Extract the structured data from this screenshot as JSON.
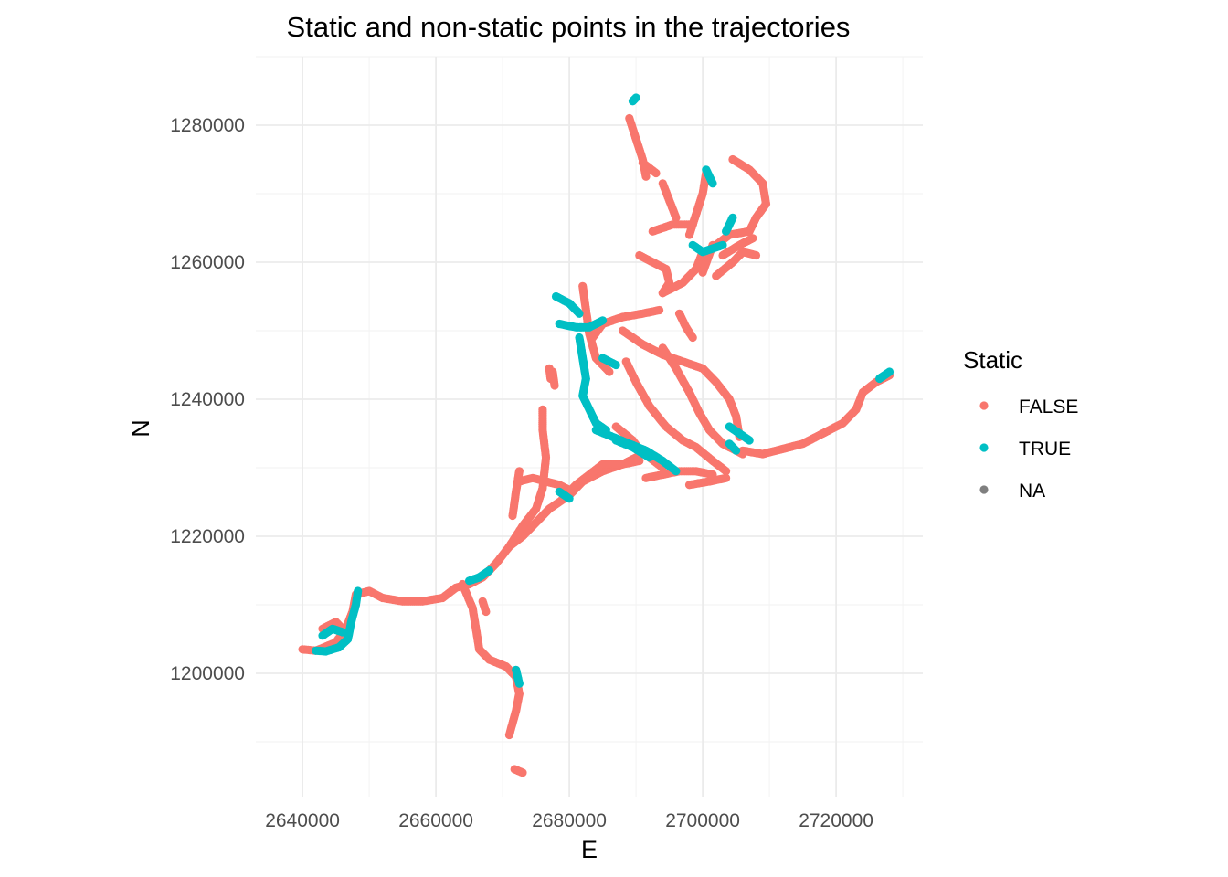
{
  "chart_data": {
    "type": "scatter",
    "title": "Static and non-static points in the trajectories",
    "xlabel": "E",
    "ylabel": "N",
    "xlim": [
      2633000,
      2733000
    ],
    "ylim": [
      1182000,
      1290000
    ],
    "x_ticks": [
      2640000,
      2660000,
      2680000,
      2700000,
      2720000
    ],
    "y_ticks": [
      1200000,
      1220000,
      1240000,
      1260000,
      1280000
    ],
    "x_tick_labels": [
      "2640000",
      "2660000",
      "2680000",
      "2700000",
      "2720000"
    ],
    "y_tick_labels": [
      "1200000",
      "1220000",
      "1240000",
      "1260000",
      "1280000"
    ],
    "grid": true,
    "legend": {
      "title": "Static",
      "position": "right",
      "entries": [
        {
          "label": "FALSE",
          "color": "#F8766D"
        },
        {
          "label": "TRUE",
          "color": "#00BFC4"
        },
        {
          "label": "NA",
          "color": "#7F7F7F"
        }
      ]
    },
    "series": [
      {
        "name": "FALSE",
        "color": "#F8766D",
        "paths": [
          [
            [
              2640000,
              1203500
            ],
            [
              2642000,
              1203300
            ],
            [
              2645000,
              1204500
            ],
            [
              2646500,
              1206500
            ],
            [
              2647500,
              1209000
            ],
            [
              2648000,
              1211500
            ],
            [
              2650000,
              1212000
            ],
            [
              2652000,
              1211000
            ],
            [
              2655000,
              1210500
            ],
            [
              2658000,
              1210500
            ],
            [
              2661000,
              1211000
            ],
            [
              2663000,
              1212500
            ],
            [
              2665000,
              1213000
            ],
            [
              2667000,
              1214000
            ],
            [
              2669000,
              1216000
            ],
            [
              2671000,
              1218500
            ],
            [
              2673000,
              1220000
            ],
            [
              2675000,
              1222000
            ],
            [
              2677000,
              1224000
            ],
            [
              2680000,
              1226000
            ],
            [
              2682000,
              1228000
            ],
            [
              2685000,
              1229500
            ],
            [
              2688000,
              1230500
            ],
            [
              2690000,
              1231500
            ]
          ],
          [
            [
              2643000,
              1206500
            ],
            [
              2645000,
              1207500
            ],
            [
              2646000,
              1206500
            ]
          ],
          [
            [
              2664000,
              1213000
            ],
            [
              2665500,
              1209500
            ],
            [
              2666000,
              1206500
            ],
            [
              2666500,
              1203500
            ],
            [
              2668000,
              1202000
            ],
            [
              2670500,
              1201000
            ],
            [
              2672000,
              1199500
            ],
            [
              2672500,
              1197000
            ],
            [
              2672000,
              1194500
            ],
            [
              2671000,
              1191000
            ]
          ],
          [
            [
              2667000,
              1210500
            ],
            [
              2667500,
              1209000
            ]
          ],
          [
            [
              2671800,
              1186000
            ],
            [
              2673000,
              1185500
            ]
          ],
          [
            [
              2671000,
              1218500
            ],
            [
              2673000,
              1221500
            ],
            [
              2675000,
              1224000
            ],
            [
              2676000,
              1227000
            ],
            [
              2676500,
              1231500
            ],
            [
              2676000,
              1235500
            ],
            [
              2676000,
              1238500
            ]
          ],
          [
            [
              2671500,
              1223000
            ],
            [
              2672000,
              1226500
            ],
            [
              2672500,
              1229500
            ]
          ],
          [
            [
              2672500,
              1228000
            ],
            [
              2674500,
              1228500
            ],
            [
              2676500,
              1228000
            ],
            [
              2678500,
              1227500
            ],
            [
              2680500,
              1226500
            ]
          ],
          [
            [
              2677000,
              1244500
            ],
            [
              2677200,
              1243000
            ]
          ],
          [
            [
              2679000,
              1225500
            ],
            [
              2681000,
              1227500
            ],
            [
              2683000,
              1229000
            ],
            [
              2685000,
              1230500
            ],
            [
              2688000,
              1230500
            ],
            [
              2690500,
              1231000
            ]
          ],
          [
            [
              2682000,
              1256500
            ],
            [
              2682500,
              1253000
            ],
            [
              2683000,
              1249500
            ],
            [
              2684000,
              1246000
            ],
            [
              2686000,
              1244000
            ]
          ],
          [
            [
              2683500,
              1249000
            ],
            [
              2685000,
              1251000
            ],
            [
              2688000,
              1252000
            ],
            [
              2691000,
              1252500
            ],
            [
              2693500,
              1253000
            ]
          ],
          [
            [
              2690000,
              1233000
            ],
            [
              2692000,
              1231500
            ],
            [
              2694000,
              1230000
            ]
          ],
          [
            [
              2698000,
              1227500
            ],
            [
              2701000,
              1228000
            ],
            [
              2703500,
              1228500
            ]
          ],
          [
            [
              2706000,
              1232500
            ],
            [
              2709000,
              1232000
            ],
            [
              2711000,
              1232500
            ],
            [
              2713000,
              1233000
            ],
            [
              2715000,
              1233500
            ],
            [
              2718000,
              1235000
            ],
            [
              2721000,
              1236500
            ],
            [
              2723000,
              1238500
            ],
            [
              2724000,
              1241000
            ],
            [
              2726000,
              1242500
            ],
            [
              2728000,
              1243500
            ]
          ],
          [
            [
              2689000,
              1281000
            ],
            [
              2690000,
              1278000
            ],
            [
              2691000,
              1275000
            ],
            [
              2691500,
              1272500
            ]
          ],
          [
            [
              2691000,
              1274500
            ],
            [
              2693000,
              1273000
            ]
          ],
          [
            [
              2690500,
              1261000
            ],
            [
              2692500,
              1260000
            ],
            [
              2694500,
              1259000
            ],
            [
              2695000,
              1257000
            ],
            [
              2694000,
              1255500
            ]
          ],
          [
            [
              2694000,
              1255500
            ],
            [
              2697000,
              1257000
            ],
            [
              2699000,
              1259000
            ],
            [
              2700000,
              1261500
            ]
          ],
          [
            [
              2702000,
              1262500
            ],
            [
              2704000,
              1264000
            ],
            [
              2707000,
              1264500
            ],
            [
              2708000,
              1266500
            ],
            [
              2709500,
              1268500
            ],
            [
              2709000,
              1271500
            ],
            [
              2707000,
              1273500
            ],
            [
              2704500,
              1275000
            ]
          ],
          [
            [
              2703000,
              1261000
            ],
            [
              2705500,
              1262500
            ],
            [
              2707500,
              1263500
            ]
          ],
          [
            [
              2702000,
              1258000
            ],
            [
              2704500,
              1260000
            ],
            [
              2706000,
              1261500
            ],
            [
              2708000,
              1261000
            ]
          ],
          [
            [
              2698000,
              1264000
            ],
            [
              2699000,
              1267000
            ],
            [
              2700000,
              1270000
            ],
            [
              2700500,
              1273000
            ]
          ],
          [
            [
              2696000,
              1266500
            ],
            [
              2695000,
              1269000
            ],
            [
              2694000,
              1271500
            ]
          ],
          [
            [
              2688000,
              1250000
            ],
            [
              2691000,
              1248000
            ],
            [
              2694000,
              1246500
            ],
            [
              2697000,
              1245500
            ],
            [
              2700000,
              1244500
            ],
            [
              2702000,
              1242500
            ],
            [
              2704000,
              1240000
            ],
            [
              2705000,
              1237500
            ],
            [
              2705500,
              1234500
            ]
          ],
          [
            [
              2688500,
              1245500
            ],
            [
              2690000,
              1242500
            ],
            [
              2692000,
              1239000
            ],
            [
              2694500,
              1236000
            ],
            [
              2697000,
              1234000
            ],
            [
              2699000,
              1233000
            ],
            [
              2701500,
              1231000
            ],
            [
              2703500,
              1229500
            ]
          ],
          [
            [
              2694000,
              1247500
            ],
            [
              2696000,
              1244500
            ],
            [
              2698000,
              1241000
            ],
            [
              2699500,
              1238000
            ],
            [
              2701000,
              1235500
            ],
            [
              2703000,
              1233500
            ],
            [
              2706000,
              1232000
            ]
          ],
          [
            [
              2691500,
              1228500
            ],
            [
              2694000,
              1229000
            ],
            [
              2696500,
              1229500
            ],
            [
              2699000,
              1229500
            ],
            [
              2701500,
              1229000
            ]
          ],
          [
            [
              2687000,
              1236000
            ],
            [
              2689500,
              1234000
            ],
            [
              2691000,
              1232000
            ]
          ],
          [
            [
              2700000,
              1258500
            ],
            [
              2701500,
              1262500
            ]
          ],
          [
            [
              2677500,
              1244000
            ],
            [
              2677800,
              1242000
            ]
          ],
          [
            [
              2692500,
              1264500
            ],
            [
              2695500,
              1265500
            ],
            [
              2698500,
              1265500
            ]
          ],
          [
            [
              2696500,
              1252500
            ],
            [
              2697500,
              1250500
            ],
            [
              2698500,
              1249000
            ]
          ]
        ]
      },
      {
        "name": "TRUE",
        "color": "#00BFC4",
        "paths": [
          [
            [
              2642000,
              1203300
            ],
            [
              2643500,
              1203200
            ],
            [
              2645500,
              1203800
            ],
            [
              2646800,
              1205000
            ],
            [
              2647300,
              1207500
            ],
            [
              2648000,
              1210000
            ],
            [
              2648300,
              1212000
            ]
          ],
          [
            [
              2643000,
              1205500
            ],
            [
              2644500,
              1206500
            ],
            [
              2646000,
              1206000
            ]
          ],
          [
            [
              2665000,
              1213500
            ],
            [
              2666500,
              1214000
            ],
            [
              2668000,
              1215000
            ]
          ],
          [
            [
              2678500,
              1226500
            ],
            [
              2680000,
              1225500
            ]
          ],
          [
            [
              2672000,
              1200500
            ],
            [
              2672500,
              1198500
            ]
          ],
          [
            [
              2678000,
              1255000
            ],
            [
              2680000,
              1254000
            ],
            [
              2681500,
              1252500
            ]
          ],
          [
            [
              2678500,
              1251000
            ],
            [
              2681000,
              1250500
            ],
            [
              2683000,
              1250500
            ],
            [
              2685000,
              1251500
            ]
          ],
          [
            [
              2681500,
              1249000
            ],
            [
              2682000,
              1246000
            ],
            [
              2682500,
              1243000
            ],
            [
              2682000,
              1240500
            ],
            [
              2683000,
              1238500
            ],
            [
              2684000,
              1236500
            ],
            [
              2685500,
              1235500
            ]
          ],
          [
            [
              2684000,
              1235500
            ],
            [
              2686500,
              1234500
            ],
            [
              2689000,
              1233500
            ],
            [
              2691500,
              1232500
            ],
            [
              2694000,
              1231000
            ],
            [
              2696000,
              1229500
            ]
          ],
          [
            [
              2687000,
              1234000
            ],
            [
              2689500,
              1233000
            ],
            [
              2692000,
              1231500
            ]
          ],
          [
            [
              2698500,
              1262500
            ],
            [
              2700000,
              1261500
            ],
            [
              2701500,
              1262000
            ],
            [
              2703000,
              1262500
            ]
          ],
          [
            [
              2703500,
              1264500
            ],
            [
              2704500,
              1266500
            ]
          ],
          [
            [
              2700500,
              1273500
            ],
            [
              2701500,
              1271500
            ]
          ],
          [
            [
              2704000,
              1236000
            ],
            [
              2705500,
              1235000
            ],
            [
              2707000,
              1234000
            ]
          ],
          [
            [
              2704000,
              1233500
            ],
            [
              2705000,
              1232500
            ]
          ],
          [
            [
              2726500,
              1243000
            ],
            [
              2728000,
              1244000
            ]
          ],
          [
            [
              2689500,
              1283500
            ],
            [
              2690000,
              1284000
            ]
          ],
          [
            [
              2685000,
              1246000
            ],
            [
              2687000,
              1245000
            ]
          ]
        ]
      },
      {
        "name": "NA",
        "color": "#7F7F7F",
        "paths": []
      }
    ]
  }
}
